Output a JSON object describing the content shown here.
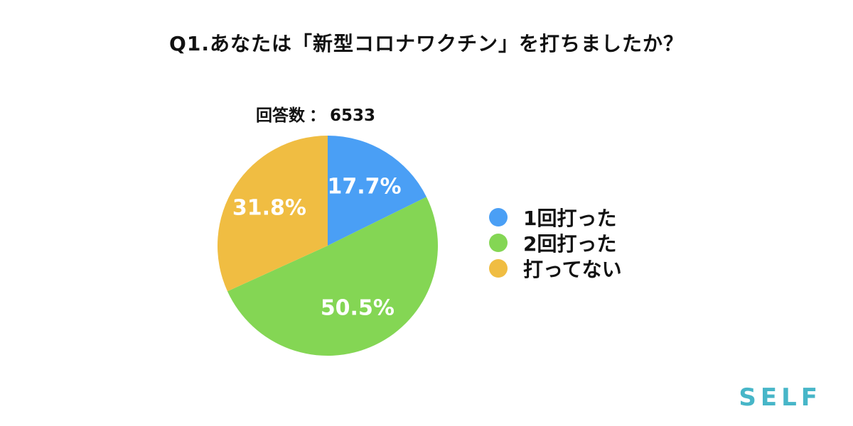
{
  "title": "Q1.あなたは「新型コロナワクチン」を打ちましたか？",
  "response_count": {
    "label": "回答数",
    "separator": "：",
    "value": "6533"
  },
  "brand": "SELF",
  "colors": {
    "text": "#111111",
    "brand": "#47b6c8"
  },
  "chart_data": {
    "type": "pie",
    "title": "Q1.あなたは「新型コロナワクチン」を打ちましたか？",
    "start": "12 o'clock, clockwise",
    "legend_position": "right",
    "slices": [
      {
        "label": "1回打った",
        "value": 17.7,
        "display": "17.7%",
        "color": "#4a9ff5"
      },
      {
        "label": "2回打った",
        "value": 50.5,
        "display": "50.5%",
        "color": "#84d654"
      },
      {
        "label": "打ってない",
        "value": 31.8,
        "display": "31.8%",
        "color": "#f0bd42"
      }
    ]
  }
}
